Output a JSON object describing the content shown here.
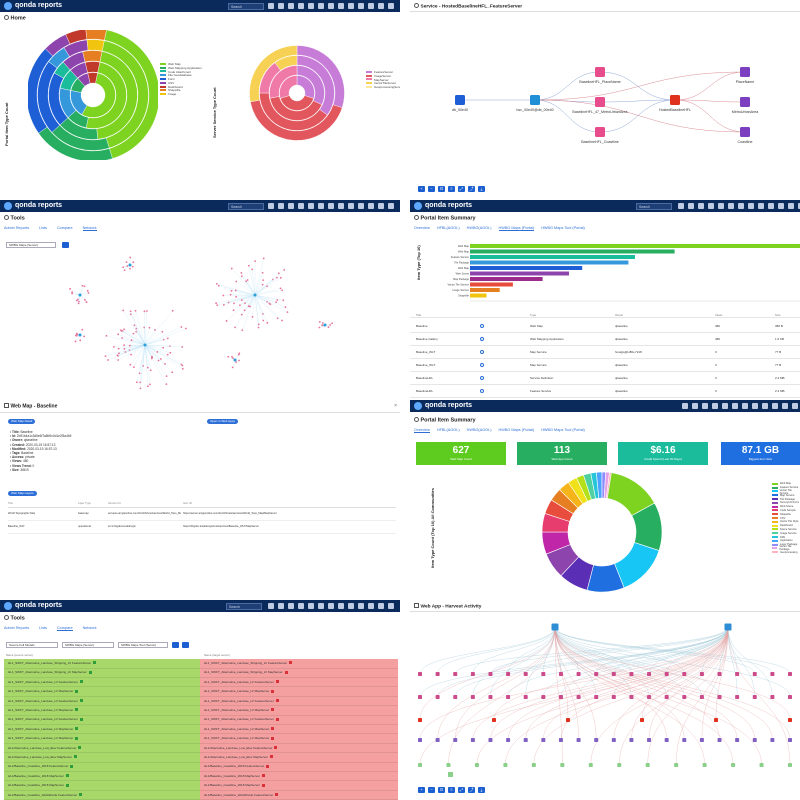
{
  "app": {
    "brand": "qonda reports",
    "search_placeholder": "Search"
  },
  "home": {
    "title": "Home",
    "portal_axis": "Portal Item Type Count",
    "server_axis": "Server Service Type Count",
    "portal_legend": [
      "Web Map",
      "Web Mapping Application",
      "Code Attachment",
      "File Geodatabase",
      "Form",
      "CSV",
      "Dashboard",
      "Shapefile",
      "Image"
    ],
    "portal_colors": [
      "#7ed321",
      "#27ae60",
      "#1abc9c",
      "#3498db",
      "#1f5fd6",
      "#8e44ad",
      "#c0392b",
      "#e67e22",
      "#f1c40f"
    ],
    "server_legend": [
      "FeatureServer",
      "ImageServer",
      "MapServer",
      "VectorTileServer",
      "GeoprocessingServer"
    ],
    "server_colors": [
      "#c77dd8",
      "#e2575d",
      "#ef7aa8",
      "#f7d154",
      "#ffe89a"
    ]
  },
  "service": {
    "title": "Service - HostedBaselineHFL_FeatureServer",
    "nodes": [
      "db_00e40",
      "hsc_00e40@db_00e40",
      "BaselineHFL_PlaceName",
      "BaselineHFL_47_MetroUrbanArea",
      "BaselineHFL_Coastline",
      "HostedBaselineHFL",
      "PlaceName",
      "MetroUrbanArea",
      "Coastline"
    ]
  },
  "tools": {
    "title": "Tools",
    "tabs": [
      "Admin Reports",
      "Lists",
      "Compare",
      "Network"
    ],
    "select_value": "SWBG Maps (Server)"
  },
  "summary": {
    "title": "Portal Item Summary",
    "tabs": [
      "Overview",
      "HFBL(AGOL)",
      "HWBG(AGOL)",
      "HWBG Maps (Portal)",
      "HWBG Maps Tool (Portal)"
    ],
    "axis": "Item Type (Top 10)",
    "bar_labels": [
      "Web Map",
      "Web Map",
      "Feature Service",
      "Tile Package",
      "Web Map",
      "Web Scene",
      "Map Package",
      "Vector Tile Service",
      "Image Service",
      "Shapefile"
    ],
    "bar_values": [
      1.0,
      0.62,
      0.5,
      0.48,
      0.34,
      0.3,
      0.22,
      0.13,
      0.09,
      0.05
    ],
    "bar_colors": [
      "#7ed321",
      "#27ae60",
      "#1abc9c",
      "#3498db",
      "#1f5fd6",
      "#8e44ad",
      "#9b2c8c",
      "#e74c3c",
      "#e67e22",
      "#f1c40f"
    ],
    "columns": [
      "Title",
      "",
      "Type",
      "Owner",
      "",
      "Views",
      "",
      "Size"
    ],
    "rows": [
      [
        "Baseline",
        "",
        "Web Map",
        "qbaseline",
        "",
        "480",
        "",
        "386 B"
      ],
      [
        "Baseline Gallery",
        "",
        "Web Mapping Application",
        "qbaseline",
        "",
        "480",
        "",
        "1.6 KB"
      ],
      [
        "Baseline_WLT",
        "",
        "Map Service",
        "hostgis@HBG-7218",
        "",
        "0",
        "",
        "77 B"
      ],
      [
        "Baseline_WLT",
        "",
        "Map Service",
        "qbaseline",
        "",
        "0",
        "",
        "77 B"
      ],
      [
        "BaselineHFL",
        "",
        "Service Definition",
        "qbaseline",
        "",
        "0",
        "",
        "2.3 MB"
      ],
      [
        "BaselineHFL",
        "",
        "Feature Service",
        "qbaseline",
        "",
        "0",
        "",
        "2.3 MB"
      ]
    ]
  },
  "webmap": {
    "title": "Web Map - Baseline",
    "open_btn": "Web Map Detail",
    "open2_btn": "Open in Web Apps",
    "fields": [
      [
        "Title:",
        " Baseline"
      ],
      [
        "Id:",
        " 2b91b4a1c3d5e6f7a8b9c0d1e2f3a4b5"
      ],
      [
        "Owner:",
        " qbaseline"
      ],
      [
        "Created:",
        " 2020-03-19 16:57:13"
      ],
      [
        "Modified:",
        " 2020-03-19 16:57:13"
      ],
      [
        "Tags:",
        " Baseline"
      ],
      [
        "Access:",
        " private"
      ],
      [
        "Views:",
        " 480"
      ],
      [
        "Views Trend:",
        " 0"
      ],
      [
        "Size:",
        " 386 B"
      ]
    ],
    "layers_btn": "Web Map Layers",
    "layer_cols": [
      "Title",
      "Layer Type",
      "Service Url",
      "Item Url"
    ],
    "layers": [
      [
        "World Topographic Map",
        "basemap",
        "services.arcgisonline.com/ArcGIS/rest/services/World_Topo_Map/MapServer",
        "https://server.arcgisonline.com/ArcGIS/rest/services/World_Topo_Map/MapServer"
      ],
      [
        "Baseline_WLT",
        "operational",
        "srv1.hbgdev.local/arcgis",
        "https://hbgdev.local/arcgis/rest/services/Baseline_WLT/MapServer"
      ]
    ]
  },
  "overview": {
    "title": "Portal Item Summary",
    "tabs": [
      "Overview",
      "HFBL(AGOL)",
      "HWBG(AGOL)",
      "HWBG Maps (Portal)",
      "HWBG Maps Tool (Portal)"
    ],
    "cards": [
      {
        "value": "627",
        "label": "Web Map Count",
        "color": "#5ecb1f"
      },
      {
        "value": "113",
        "label": "Web App Count",
        "color": "#27ae60"
      },
      {
        "value": "$6.16",
        "label": "Credit Spend (Last 30 Days)",
        "color": "#1abc9c"
      },
      {
        "value": "87.1 GB",
        "label": "Biggest Item Size",
        "color": "#1f6fe0"
      }
    ],
    "axis": "Item Type Count (Top 10) All Communities",
    "legend": [
      "Web Map",
      "Feature Service",
      "Vector Tile Service",
      "Map Service",
      "Tile Package",
      "Survey123 Form",
      "Web Scene",
      "Code Sample",
      "Shapefile",
      "CSV",
      "Vector Tile Style",
      "Dashboard",
      "Scene Service",
      "Image Service",
      "KML",
      "Application",
      "Layer Package",
      "Vector Tile Package",
      "Geoprocessing"
    ],
    "slices": [
      0.17,
      0.13,
      0.14,
      0.1,
      0.08,
      0.07,
      0.06,
      0.05,
      0.04,
      0.035,
      0.03,
      0.025,
      0.02,
      0.02,
      0.015,
      0.015,
      0.01,
      0.01,
      0.005
    ],
    "colors": [
      "#7ed321",
      "#27ae60",
      "#18c6f5",
      "#1f6fe0",
      "#5b2fb5",
      "#8e44ad",
      "#c026a8",
      "#e73c6e",
      "#e74c3c",
      "#e67e22",
      "#f5b41a",
      "#f1e11a",
      "#b4e01a",
      "#4ed0a0",
      "#26c6da",
      "#4aa3ff",
      "#8c8cff",
      "#e6a0e6",
      "#ffb3c1"
    ]
  },
  "compare": {
    "title": "Tools",
    "tabs": [
      "Admin Reports",
      "Lists",
      "Compare",
      "Network"
    ],
    "select1": "Source Full Models",
    "select2": "SWBG Maps (Server)",
    "select3": "SWBG Maps Tool (Server)",
    "left_head": "Name (source server)",
    "right_head": "Name (target server)",
    "left": [
      "HL1_SWFT_Alternative_Landuse_Shipping_LV FeatureServer",
      "HL1_SWFT_Alternative_Landuse_Shipping_LV MapServer",
      "HL1_SWFT_Alternative_Landuse_LV FeatureServer",
      "HL1_SWFT_Alternative_Landuse_LV MapServer",
      "HL1_SWFT_Alternative_Landuse_LV FeatureServer",
      "HL1_SWFT_Alternative_Landuse_LV MapServer",
      "HL1_SWFT_Alternative_Landuse_LV FeatureServer",
      "HL1_SWFT_Alternative_Landuse_LV MapServer",
      "HL1_SWFT_Alternative_Landuse_LV MapServer",
      "HL1/Alternative_Landuse_Low_Elev FeatureServer",
      "HL1/Alternative_Landuse_Low_Elev MapServer",
      "HL1/Baseline_Coastline_2018 FeatureServer",
      "HL1/Baseline_Coastline_2018 MapServer",
      "HL1/Baseline_Coastline_2018 MapServer",
      "HL1/Baseline_Coastline_WellsDivide FeatureServer"
    ],
    "right": [
      "HL1_SWFT_Alternative_Landuse_Shipping_LV FeatureServer",
      "HL1_SWFT_Alternative_Landuse_Shipping_LV MapServer",
      "HL1_SWFT_Alternative_Landuse_LV FeatureServer",
      "HL1_SWFT_Alternative_Landuse_LV MapServer",
      "HL1_SWFT_Alternative_Landuse_LV FeatureServer",
      "HL1_SWFT_Alternative_Landuse_LV MapServer",
      "HL1_SWFT_Alternative_Landuse_LV FeatureServer",
      "HL1_SWFT_Alternative_Landuse_LV MapServer",
      "HL1_SWFT_Alternative_Landuse_LV MapServer",
      "HL1/Alternative_Landuse_Low_Elev FeatureServer",
      "HL1/Alternative_Landuse_Low_Elev MapServer",
      "HL1/Baseline_Coastline_2018 FeatureServer",
      "HL1/Baseline_Coastline_2018 MapServer",
      "HL1/Baseline_Coastline_2018 MapServer",
      "HL1/Baseline_Coastline_WellsDivide FeatureServer"
    ]
  },
  "harvest": {
    "title": "Web App - Harvest Activity"
  }
}
